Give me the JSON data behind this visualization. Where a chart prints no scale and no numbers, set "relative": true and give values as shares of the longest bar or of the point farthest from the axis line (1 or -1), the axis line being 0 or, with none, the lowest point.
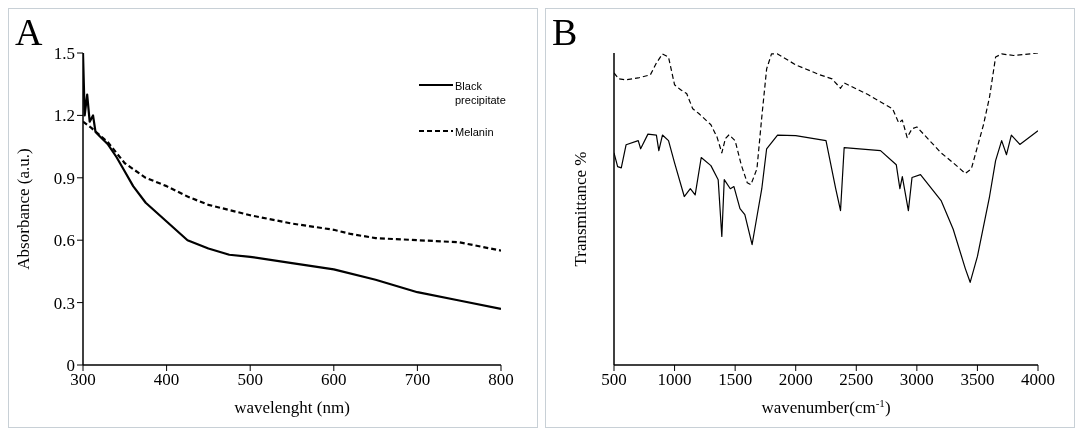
{
  "chart_data": [
    {
      "type": "line",
      "title": "A",
      "xlabel": "wavelenght (nm)",
      "ylabel": "Absorbance (a.u.)",
      "xlim": [
        300,
        800
      ],
      "xticks": [
        300,
        400,
        500,
        600,
        700,
        800
      ],
      "ylim": [
        0,
        1.5
      ],
      "yticks": [
        0,
        0.3,
        0.6,
        0.9,
        1.2,
        1.5
      ],
      "legend": "top right",
      "series": [
        {
          "name": "Black precipitate",
          "color": "#000000",
          "line_style": "solid",
          "x": [
            300,
            302,
            305,
            308,
            312,
            315,
            320,
            330,
            340,
            350,
            360,
            375,
            400,
            425,
            450,
            475,
            500,
            550,
            600,
            650,
            700,
            750,
            800
          ],
          "values": [
            1.5,
            1.2,
            1.3,
            1.17,
            1.2,
            1.12,
            1.1,
            1.06,
            1.0,
            0.93,
            0.86,
            0.78,
            0.69,
            0.6,
            0.56,
            0.53,
            0.52,
            0.49,
            0.46,
            0.41,
            0.35,
            0.31,
            0.27
          ]
        },
        {
          "name": "Melanin",
          "color": "#000000",
          "line_style": "dashed",
          "x": [
            300,
            310,
            330,
            350,
            375,
            400,
            425,
            450,
            500,
            550,
            600,
            620,
            650,
            700,
            750,
            800
          ],
          "values": [
            1.17,
            1.14,
            1.07,
            0.97,
            0.9,
            0.86,
            0.81,
            0.77,
            0.72,
            0.68,
            0.65,
            0.63,
            0.61,
            0.6,
            0.59,
            0.55
          ]
        }
      ]
    },
    {
      "type": "line",
      "title": "B",
      "xlabel": "wavenumber(cm$^{-1}$)",
      "ylabel": "Transmittance %",
      "xlim": [
        500,
        4000
      ],
      "xticks": [
        500,
        1000,
        1500,
        2000,
        2500,
        3000,
        3500,
        4000
      ],
      "relative": true,
      "series": [
        {
          "color": "#000000",
          "line_style": "dashed",
          "x": [
            500,
            540,
            600,
            700,
            800,
            850,
            900,
            950,
            1000,
            1050,
            1100,
            1150,
            1200,
            1300,
            1350,
            1390,
            1420,
            1450,
            1500,
            1550,
            1600,
            1630,
            1680,
            1720,
            1760,
            1800,
            1850,
            2000,
            2200,
            2300,
            2370,
            2400,
            2600,
            2800,
            2850,
            2880,
            2920,
            2960,
            3000,
            3200,
            3300,
            3400,
            3450,
            3550,
            3600,
            3650,
            3700,
            3800,
            4000
          ],
          "values": [
            0.936,
            0.917,
            0.914,
            0.92,
            0.93,
            0.968,
            0.997,
            0.987,
            0.898,
            0.882,
            0.87,
            0.821,
            0.806,
            0.77,
            0.731,
            0.68,
            0.726,
            0.738,
            0.719,
            0.642,
            0.584,
            0.578,
            0.629,
            0.795,
            0.949,
            0.997,
            0.997,
            0.962,
            0.93,
            0.917,
            0.887,
            0.904,
            0.866,
            0.821,
            0.776,
            0.785,
            0.729,
            0.757,
            0.763,
            0.68,
            0.648,
            0.614,
            0.629,
            0.77,
            0.859,
            0.987,
            0.997,
            0.992,
            1.0
          ]
        },
        {
          "color": "#000000",
          "line_style": "solid",
          "x": [
            500,
            530,
            560,
            600,
            700,
            720,
            780,
            850,
            870,
            900,
            950,
            1000,
            1080,
            1130,
            1170,
            1220,
            1300,
            1360,
            1390,
            1410,
            1460,
            1490,
            1540,
            1580,
            1640,
            1680,
            1720,
            1760,
            1850,
            2000,
            2250,
            2330,
            2370,
            2400,
            2700,
            2830,
            2860,
            2880,
            2930,
            2960,
            3030,
            3200,
            3300,
            3400,
            3440,
            3500,
            3600,
            3650,
            3700,
            3740,
            3780,
            3850,
            4000
          ],
          "values": [
            0.68,
            0.636,
            0.632,
            0.706,
            0.719,
            0.693,
            0.74,
            0.737,
            0.687,
            0.737,
            0.719,
            0.648,
            0.54,
            0.565,
            0.545,
            0.665,
            0.639,
            0.594,
            0.412,
            0.594,
            0.565,
            0.572,
            0.501,
            0.482,
            0.386,
            0.476,
            0.565,
            0.693,
            0.737,
            0.735,
            0.719,
            0.565,
            0.495,
            0.697,
            0.687,
            0.642,
            0.565,
            0.604,
            0.495,
            0.601,
            0.61,
            0.527,
            0.435,
            0.309,
            0.265,
            0.348,
            0.54,
            0.655,
            0.719,
            0.674,
            0.737,
            0.707,
            0.751
          ]
        }
      ]
    }
  ]
}
